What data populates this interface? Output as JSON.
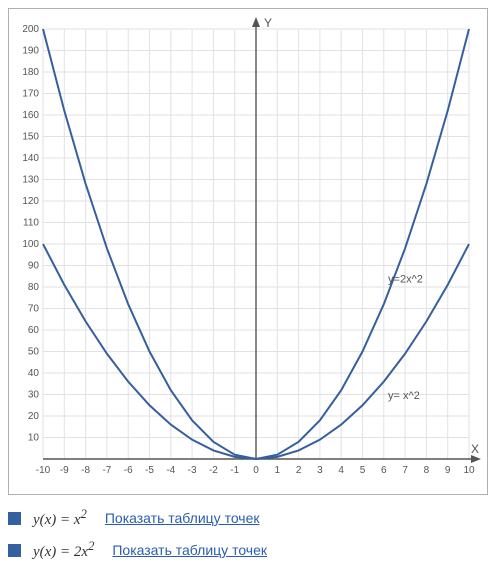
{
  "chart": {
    "type": "line",
    "background_color": "#ffffff",
    "grid_color": "#e2e2e2",
    "axis_color": "#555555",
    "label_color": "#555555",
    "series": [
      {
        "name": "y=2x^2",
        "label": "y=2x^2",
        "label_pos": {
          "x": 6.2,
          "y": 82
        },
        "color": "#355f9e",
        "width": 2,
        "x": [
          -10,
          -9,
          -8,
          -7,
          -6,
          -5,
          -4,
          -3,
          -2,
          -1,
          0,
          1,
          2,
          3,
          4,
          5,
          6,
          7,
          8,
          9,
          10
        ],
        "y": [
          200,
          162,
          128,
          98,
          72,
          50,
          32,
          18,
          8,
          2,
          0,
          2,
          8,
          18,
          32,
          50,
          72,
          98,
          128,
          162,
          200
        ]
      },
      {
        "name": "y=x^2",
        "label": "y= x^2",
        "label_pos": {
          "x": 6.2,
          "y": 28
        },
        "color": "#355f9e",
        "width": 2,
        "x": [
          -10,
          -9,
          -8,
          -7,
          -6,
          -5,
          -4,
          -3,
          -2,
          -1,
          0,
          1,
          2,
          3,
          4,
          5,
          6,
          7,
          8,
          9,
          10
        ],
        "y": [
          100,
          81,
          64,
          49,
          36,
          25,
          16,
          9,
          4,
          1,
          0,
          1,
          4,
          9,
          16,
          25,
          36,
          49,
          64,
          81,
          100
        ]
      }
    ],
    "xaxis": {
      "title": "X",
      "min": -10,
      "max": 10,
      "step": 1,
      "fontsize": 10
    },
    "yaxis": {
      "title": "Y",
      "min": 0,
      "max": 200,
      "step": 10,
      "fontsize": 10
    },
    "series_label_fontsize": 11
  },
  "legend": {
    "swatch_color": "#355f9e",
    "items": [
      {
        "func_html": "y(x) = x<sup>2</sup>",
        "link": "Показать таблицу точек"
      },
      {
        "func_html": "y(x) = 2x<sup>2</sup>",
        "link": "Показать таблицу точек"
      }
    ]
  }
}
